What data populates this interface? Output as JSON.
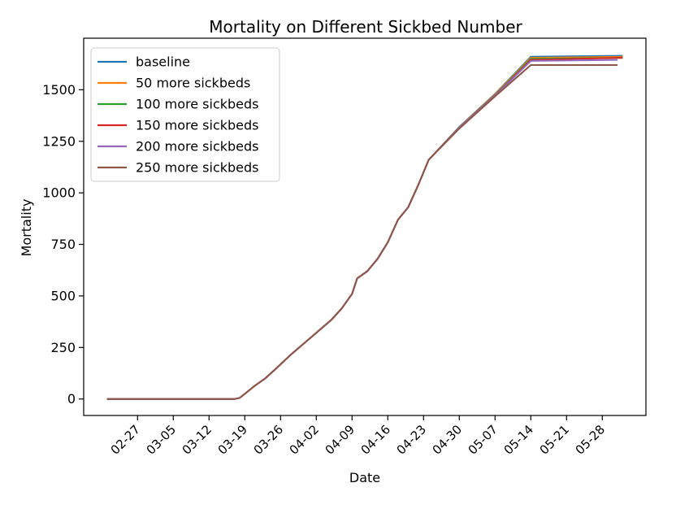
{
  "chart_data": {
    "type": "line",
    "title": "Mortality on Different Sickbed Number",
    "xlabel": "Date",
    "ylabel": "Mortality",
    "x_ticks": [
      "02-27",
      "03-05",
      "03-12",
      "03-19",
      "03-26",
      "04-02",
      "04-09",
      "04-16",
      "04-23",
      "04-30",
      "05-07",
      "05-14",
      "05-21",
      "05-28"
    ],
    "y_ticks": [
      0,
      250,
      500,
      750,
      1000,
      1250,
      1500
    ],
    "ylim": [
      -80,
      1750
    ],
    "grid": false,
    "legend_position": "upper left",
    "series": [
      {
        "name": "baseline",
        "color": "#1f77b4",
        "points": [
          [
            "02-21",
            0
          ],
          [
            "03-17",
            0
          ],
          [
            "03-18",
            5
          ],
          [
            "03-19",
            25
          ],
          [
            "03-21",
            65
          ],
          [
            "03-23",
            100
          ],
          [
            "03-25",
            145
          ],
          [
            "03-28",
            215
          ],
          [
            "04-01",
            300
          ],
          [
            "04-05",
            385
          ],
          [
            "04-07",
            440
          ],
          [
            "04-09",
            510
          ],
          [
            "04-10",
            585
          ],
          [
            "04-12",
            620
          ],
          [
            "04-14",
            680
          ],
          [
            "04-16",
            760
          ],
          [
            "04-18",
            870
          ],
          [
            "04-20",
            930
          ],
          [
            "04-22",
            1040
          ],
          [
            "04-24",
            1160
          ],
          [
            "04-30",
            1320
          ],
          [
            "05-07",
            1480
          ],
          [
            "05-14",
            1660
          ],
          [
            "06-01",
            1665
          ]
        ]
      },
      {
        "name": "50 more sickbeds",
        "color": "#ff7f0e",
        "points": [
          [
            "02-21",
            0
          ],
          [
            "03-17",
            0
          ],
          [
            "03-18",
            5
          ],
          [
            "03-19",
            25
          ],
          [
            "03-21",
            65
          ],
          [
            "03-23",
            100
          ],
          [
            "03-25",
            145
          ],
          [
            "03-28",
            215
          ],
          [
            "04-01",
            300
          ],
          [
            "04-05",
            385
          ],
          [
            "04-07",
            440
          ],
          [
            "04-09",
            510
          ],
          [
            "04-10",
            585
          ],
          [
            "04-12",
            620
          ],
          [
            "04-14",
            680
          ],
          [
            "04-16",
            760
          ],
          [
            "04-18",
            870
          ],
          [
            "04-20",
            930
          ],
          [
            "04-22",
            1040
          ],
          [
            "04-24",
            1160
          ],
          [
            "04-30",
            1318
          ],
          [
            "05-07",
            1478
          ],
          [
            "05-14",
            1655
          ],
          [
            "06-01",
            1660
          ]
        ]
      },
      {
        "name": "100 more sickbeds",
        "color": "#2ca02c",
        "points": [
          [
            "02-21",
            0
          ],
          [
            "03-17",
            0
          ],
          [
            "03-18",
            5
          ],
          [
            "03-19",
            25
          ],
          [
            "03-21",
            65
          ],
          [
            "03-23",
            100
          ],
          [
            "03-25",
            145
          ],
          [
            "03-28",
            215
          ],
          [
            "04-01",
            300
          ],
          [
            "04-05",
            385
          ],
          [
            "04-07",
            440
          ],
          [
            "04-09",
            510
          ],
          [
            "04-10",
            585
          ],
          [
            "04-12",
            620
          ],
          [
            "04-14",
            680
          ],
          [
            "04-16",
            760
          ],
          [
            "04-18",
            870
          ],
          [
            "04-20",
            930
          ],
          [
            "04-22",
            1040
          ],
          [
            "04-24",
            1160
          ],
          [
            "04-30",
            1316
          ],
          [
            "05-07",
            1475
          ],
          [
            "05-14",
            1650
          ],
          [
            "06-01",
            1655
          ]
        ]
      },
      {
        "name": "150 more sickbeds",
        "color": "#d62728",
        "points": [
          [
            "02-21",
            0
          ],
          [
            "03-17",
            0
          ],
          [
            "03-18",
            5
          ],
          [
            "03-19",
            25
          ],
          [
            "03-21",
            65
          ],
          [
            "03-23",
            100
          ],
          [
            "03-25",
            145
          ],
          [
            "03-28",
            215
          ],
          [
            "04-01",
            300
          ],
          [
            "04-05",
            385
          ],
          [
            "04-07",
            440
          ],
          [
            "04-09",
            510
          ],
          [
            "04-10",
            585
          ],
          [
            "04-12",
            620
          ],
          [
            "04-14",
            680
          ],
          [
            "04-16",
            760
          ],
          [
            "04-18",
            870
          ],
          [
            "04-20",
            930
          ],
          [
            "04-22",
            1040
          ],
          [
            "04-24",
            1160
          ],
          [
            "04-30",
            1315
          ],
          [
            "05-07",
            1473
          ],
          [
            "05-14",
            1645
          ],
          [
            "06-01",
            1655
          ]
        ]
      },
      {
        "name": "200 more sickbeds",
        "color": "#9467bd",
        "points": [
          [
            "02-21",
            0
          ],
          [
            "03-17",
            0
          ],
          [
            "03-18",
            5
          ],
          [
            "03-19",
            25
          ],
          [
            "03-21",
            65
          ],
          [
            "03-23",
            100
          ],
          [
            "03-25",
            145
          ],
          [
            "03-28",
            215
          ],
          [
            "04-01",
            300
          ],
          [
            "04-05",
            385
          ],
          [
            "04-07",
            440
          ],
          [
            "04-09",
            510
          ],
          [
            "04-10",
            585
          ],
          [
            "04-12",
            620
          ],
          [
            "04-14",
            680
          ],
          [
            "04-16",
            760
          ],
          [
            "04-18",
            870
          ],
          [
            "04-20",
            930
          ],
          [
            "04-22",
            1040
          ],
          [
            "04-24",
            1160
          ],
          [
            "04-30",
            1315
          ],
          [
            "05-07",
            1472
          ],
          [
            "05-14",
            1640
          ],
          [
            "05-31",
            1645
          ]
        ]
      },
      {
        "name": "250 more sickbeds",
        "color": "#8c564b",
        "points": [
          [
            "02-21",
            0
          ],
          [
            "03-17",
            0
          ],
          [
            "03-18",
            5
          ],
          [
            "03-19",
            25
          ],
          [
            "03-21",
            65
          ],
          [
            "03-23",
            100
          ],
          [
            "03-25",
            145
          ],
          [
            "03-28",
            215
          ],
          [
            "04-01",
            300
          ],
          [
            "04-05",
            385
          ],
          [
            "04-07",
            440
          ],
          [
            "04-09",
            510
          ],
          [
            "04-10",
            585
          ],
          [
            "04-12",
            620
          ],
          [
            "04-14",
            680
          ],
          [
            "04-16",
            760
          ],
          [
            "04-18",
            870
          ],
          [
            "04-20",
            930
          ],
          [
            "04-22",
            1040
          ],
          [
            "04-24",
            1160
          ],
          [
            "04-30",
            1312
          ],
          [
            "05-07",
            1468
          ],
          [
            "05-14",
            1620
          ],
          [
            "05-31",
            1620
          ]
        ]
      }
    ]
  }
}
